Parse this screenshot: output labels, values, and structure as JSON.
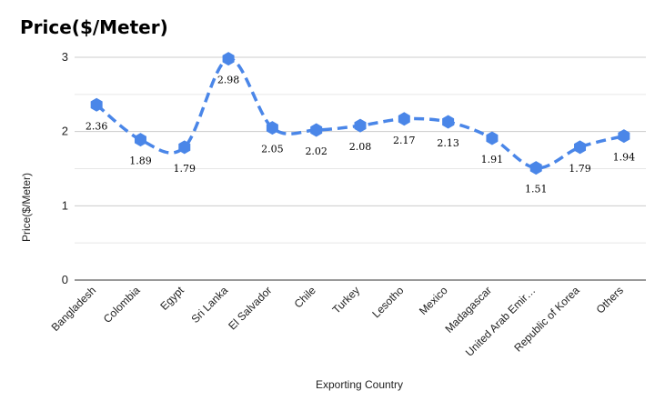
{
  "chart_data": {
    "type": "line",
    "title": "Price($/Meter)",
    "xlabel": "Exporting Country",
    "ylabel": "Price($/Meter)",
    "ylim": [
      0,
      3
    ],
    "yticks": [
      0,
      1,
      2,
      3
    ],
    "grid": true,
    "smooth": true,
    "line_style": "dashed",
    "marker": "hexagon",
    "color": "#4a86e8",
    "categories": [
      "Bangladesh",
      "Colombia",
      "Egypt",
      "Sri Lanka",
      "El Salvador",
      "Chile",
      "Turkey",
      "Lesotho",
      "Mexico",
      "Madagascar",
      "United Arab Emir…",
      "Republic of Korea",
      "Others"
    ],
    "values": [
      2.36,
      1.89,
      1.79,
      2.98,
      2.05,
      2.02,
      2.08,
      2.17,
      2.13,
      1.91,
      1.51,
      1.79,
      1.94
    ],
    "data_labels": [
      "2.36",
      "1.89",
      "1.79",
      "2.98",
      "2.05",
      "2.02",
      "2.08",
      "2.17",
      "2.13",
      "1.91",
      "1.51",
      "1.79",
      "1.94"
    ]
  }
}
